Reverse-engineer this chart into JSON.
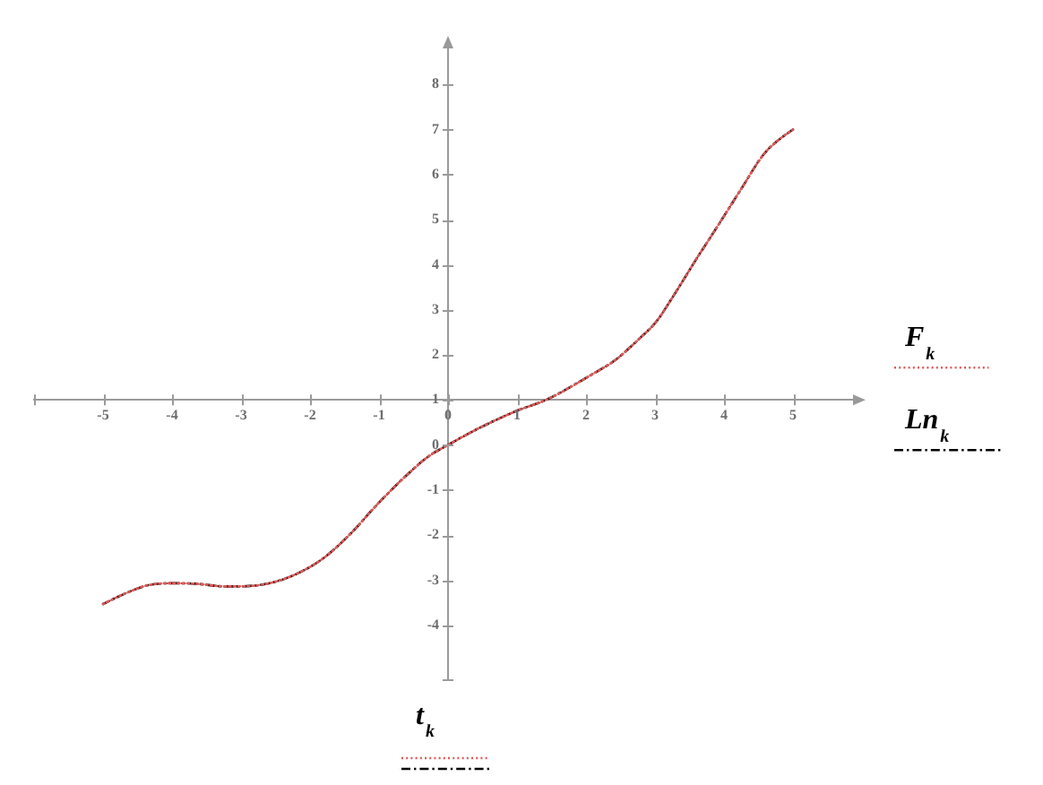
{
  "chart_data": {
    "type": "line",
    "xlabel": "t$_{k}$",
    "x": [
      -5,
      -4.64,
      -4.34,
      -4,
      -3.66,
      -3.22,
      -2.87,
      -2.35,
      -1.83,
      -1.4,
      -1.05,
      -0.62,
      -0.27,
      0,
      0.42,
      1,
      1.42,
      2.07,
      2.42,
      2.76,
      3.02,
      3.28,
      3.63,
      3.8,
      4,
      4.24,
      4.58,
      4.8,
      5
    ],
    "series": [
      {
        "name": "F$_{k}$",
        "color": "#e05a5a",
        "line_style": "dotted",
        "values": [
          -3.53,
          -3.27,
          -3.11,
          -3.07,
          -3.08,
          -3.14,
          -3.13,
          -2.96,
          -2.54,
          -1.95,
          -1.36,
          -0.7,
          -0.24,
          0,
          0.35,
          0.76,
          1.0,
          1.55,
          1.88,
          2.34,
          2.74,
          3.34,
          4.2,
          4.6,
          5.08,
          5.66,
          6.46,
          6.78,
          7.0
        ]
      },
      {
        "name": "Ln$_{k}$",
        "color": "#000000",
        "line_style": "dashed",
        "values": [
          -3.53,
          -3.27,
          -3.11,
          -3.07,
          -3.08,
          -3.14,
          -3.13,
          -2.96,
          -2.54,
          -1.95,
          -1.36,
          -0.7,
          -0.24,
          0,
          0.35,
          0.76,
          1.0,
          1.55,
          1.88,
          2.34,
          2.74,
          3.34,
          4.2,
          4.6,
          5.08,
          5.66,
          6.46,
          6.78,
          7.0
        ]
      }
    ],
    "xlim": [
      -6,
      6
    ],
    "xticks": [
      -5,
      -4,
      -3,
      -2,
      -1,
      0,
      1,
      2,
      3,
      4,
      5
    ],
    "ylim": [
      -5.2,
      9
    ],
    "yticks": [
      -4,
      -3,
      -2,
      -1,
      0,
      1,
      2,
      3,
      4,
      5,
      6,
      7,
      8
    ],
    "grid": false,
    "legend": "right",
    "marker": "none"
  }
}
